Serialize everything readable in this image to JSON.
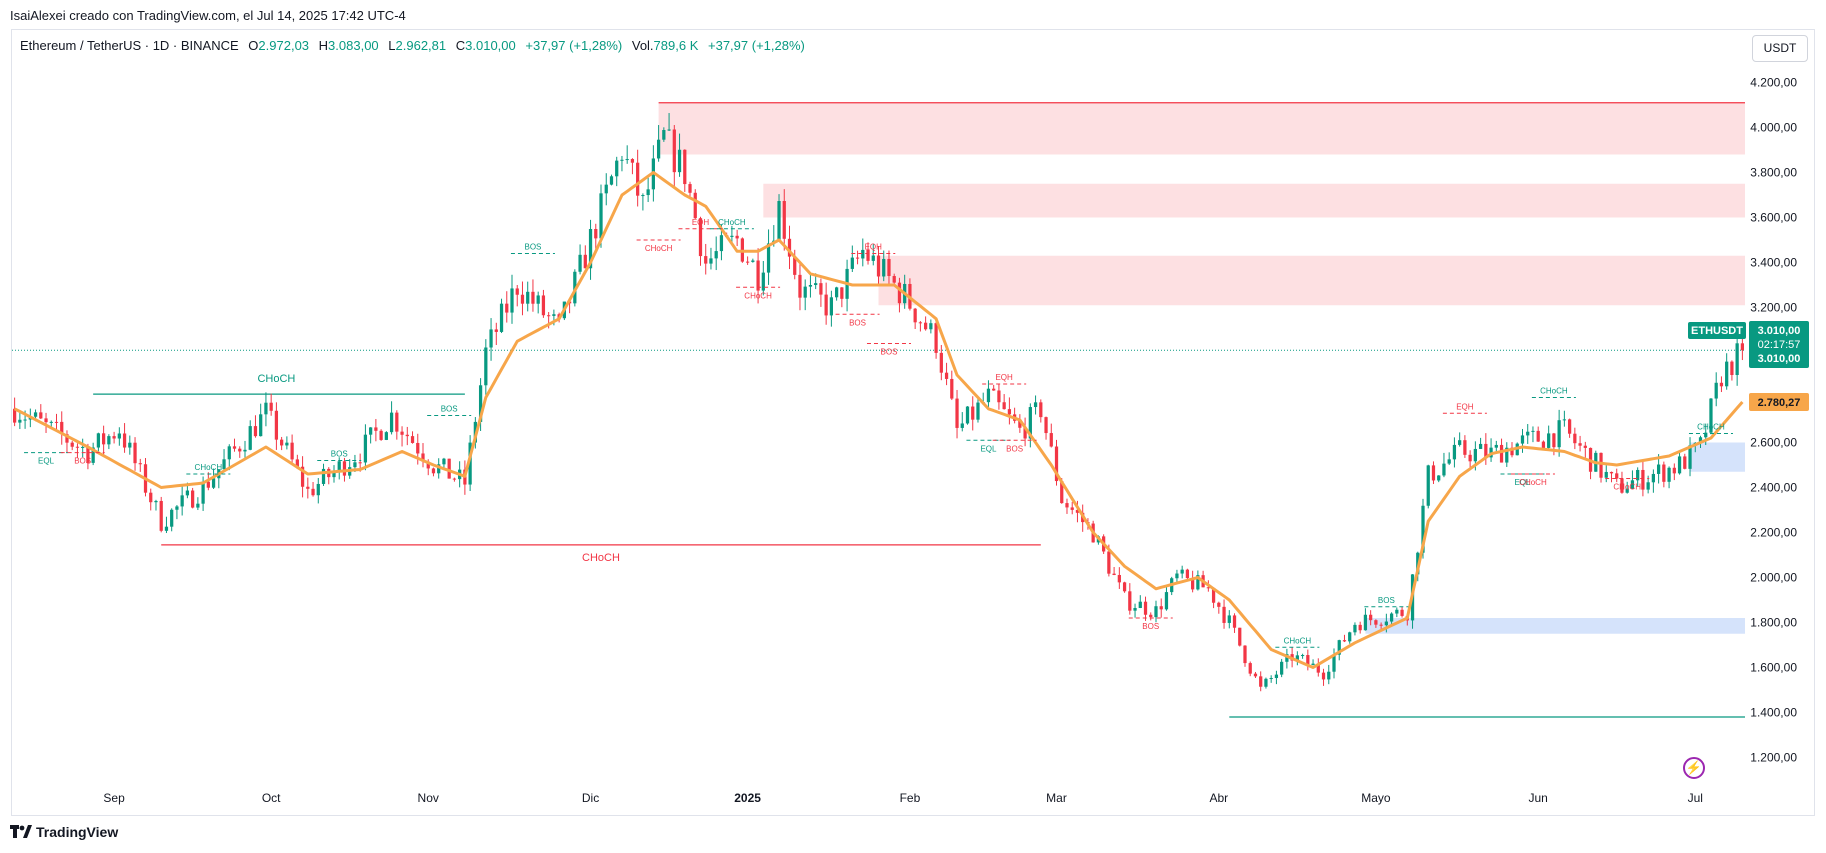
{
  "credit": "IsaiAlexei creado con TradingView.com, el Jul 14, 2025 17:42 UTC-4",
  "legend": {
    "symbol": "Ethereum / TetherUS · 1D · BINANCE",
    "o_label": "O",
    "o": "2.972,03",
    "h_label": "H",
    "h": "3.083,00",
    "l_label": "L",
    "l": "2.962,81",
    "c_label": "C",
    "c": "3.010,00",
    "change": "+37,97 (+1,28%)",
    "vol_label": "Vol.",
    "vol": "789,6 K",
    "vol_change": "+37,97 (+1,28%)"
  },
  "currency_button": "USDT",
  "brand": "TradingView",
  "colors": {
    "up": "#089981",
    "down": "#f23645",
    "ema": "#f7a64a",
    "supply": "#fde0e2",
    "demand": "#d5e3fb"
  },
  "chart_data": {
    "type": "candlestick",
    "symbol": "ETHUSDT",
    "ylim": [
      1100,
      4300
    ],
    "yticks": [
      "4.200,00",
      "4.000,00",
      "3.800,00",
      "3.600,00",
      "3.400,00",
      "3.200,00",
      "2.800,00",
      "2.600,00",
      "2.400,00",
      "2.200,00",
      "2.000,00",
      "1.800,00",
      "1.600,00",
      "1.400,00",
      "1.200,00"
    ],
    "ytick_values": [
      4200,
      4000,
      3800,
      3600,
      3400,
      3200,
      2800,
      2600,
      2400,
      2200,
      2000,
      1800,
      1600,
      1400,
      1200
    ],
    "xticks": [
      "Sep",
      "Oct",
      "Nov",
      "Dic",
      "2025",
      "Feb",
      "Mar",
      "Abr",
      "Mayo",
      "Jun",
      "Jul"
    ],
    "xtick_index": [
      19,
      49,
      79,
      110,
      140,
      171,
      199,
      230,
      260,
      291,
      321
    ],
    "price_labels": [
      {
        "text": "ETHUSDT",
        "value": 3100,
        "style": "up"
      },
      {
        "text": "3.010,00",
        "value": 3100,
        "style": "up"
      },
      {
        "text": "02:17:57",
        "value": 3040,
        "style": "up"
      },
      {
        "text": "3.010,00",
        "value": 2990,
        "style": "up"
      },
      {
        "text": "2.780,27",
        "value": 2780,
        "style": "ema"
      }
    ],
    "last_price": 3010,
    "anchors": [
      [
        0,
        2750
      ],
      [
        14,
        2560
      ],
      [
        20,
        2660
      ],
      [
        28,
        2250
      ],
      [
        36,
        2400
      ],
      [
        48,
        2730
      ],
      [
        56,
        2380
      ],
      [
        66,
        2560
      ],
      [
        72,
        2720
      ],
      [
        80,
        2500
      ],
      [
        86,
        2420
      ],
      [
        90,
        3000
      ],
      [
        96,
        3300
      ],
      [
        104,
        3100
      ],
      [
        110,
        3500
      ],
      [
        116,
        3900
      ],
      [
        120,
        3650
      ],
      [
        124,
        3950
      ],
      [
        128,
        3800
      ],
      [
        132,
        3400
      ],
      [
        138,
        3500
      ],
      [
        142,
        3350
      ],
      [
        146,
        3650
      ],
      [
        150,
        3280
      ],
      [
        156,
        3200
      ],
      [
        162,
        3450
      ],
      [
        170,
        3250
      ],
      [
        176,
        3050
      ],
      [
        180,
        2650
      ],
      [
        186,
        2800
      ],
      [
        192,
        2650
      ],
      [
        196,
        2750
      ],
      [
        200,
        2350
      ],
      [
        206,
        2200
      ],
      [
        212,
        1900
      ],
      [
        218,
        1850
      ],
      [
        222,
        2000
      ],
      [
        228,
        1950
      ],
      [
        232,
        1800
      ],
      [
        238,
        1500
      ],
      [
        244,
        1650
      ],
      [
        250,
        1580
      ],
      [
        256,
        1800
      ],
      [
        266,
        1850
      ],
      [
        270,
        2450
      ],
      [
        276,
        2560
      ],
      [
        282,
        2550
      ],
      [
        288,
        2600
      ],
      [
        296,
        2650
      ],
      [
        302,
        2500
      ],
      [
        306,
        2400
      ],
      [
        312,
        2450
      ],
      [
        318,
        2500
      ],
      [
        322,
        2580
      ],
      [
        326,
        2900
      ],
      [
        330,
        3010
      ]
    ],
    "ema_anchors": [
      [
        0,
        2750
      ],
      [
        14,
        2580
      ],
      [
        28,
        2400
      ],
      [
        36,
        2420
      ],
      [
        48,
        2580
      ],
      [
        56,
        2460
      ],
      [
        66,
        2480
      ],
      [
        74,
        2560
      ],
      [
        80,
        2500
      ],
      [
        86,
        2450
      ],
      [
        90,
        2800
      ],
      [
        96,
        3050
      ],
      [
        104,
        3150
      ],
      [
        110,
        3400
      ],
      [
        116,
        3700
      ],
      [
        122,
        3800
      ],
      [
        128,
        3700
      ],
      [
        132,
        3650
      ],
      [
        138,
        3450
      ],
      [
        142,
        3450
      ],
      [
        146,
        3500
      ],
      [
        152,
        3350
      ],
      [
        160,
        3300
      ],
      [
        168,
        3300
      ],
      [
        176,
        3150
      ],
      [
        180,
        2900
      ],
      [
        186,
        2750
      ],
      [
        192,
        2700
      ],
      [
        198,
        2500
      ],
      [
        206,
        2200
      ],
      [
        212,
        2050
      ],
      [
        218,
        1950
      ],
      [
        226,
        2000
      ],
      [
        232,
        1900
      ],
      [
        240,
        1680
      ],
      [
        248,
        1600
      ],
      [
        256,
        1710
      ],
      [
        266,
        1820
      ],
      [
        270,
        2250
      ],
      [
        276,
        2450
      ],
      [
        282,
        2550
      ],
      [
        288,
        2580
      ],
      [
        296,
        2560
      ],
      [
        302,
        2510
      ],
      [
        306,
        2500
      ],
      [
        316,
        2540
      ],
      [
        324,
        2620
      ],
      [
        330,
        2780
      ]
    ],
    "zones": [
      {
        "kind": "supply",
        "from": 123,
        "to": 332,
        "low": 3880,
        "high": 4110
      },
      {
        "kind": "supply",
        "from": 143,
        "to": 332,
        "low": 3600,
        "high": 3750
      },
      {
        "kind": "supply",
        "from": 165,
        "to": 332,
        "low": 3210,
        "high": 3430
      },
      {
        "kind": "demand",
        "from": 320,
        "to": 332,
        "low": 2470,
        "high": 2600
      },
      {
        "kind": "demand",
        "from": 258,
        "to": 332,
        "low": 1750,
        "high": 1820
      }
    ],
    "lines": [
      {
        "from": 15,
        "to": 86,
        "value": 2815,
        "color": "#089981",
        "label": "CHoCH",
        "label_at": 50,
        "label_above": true
      },
      {
        "from": 28,
        "to": 196,
        "value": 2145,
        "color": "#f23645",
        "label": "CHoCH",
        "label_at": 112,
        "label_above": false
      },
      {
        "from": 232,
        "to": 332,
        "value": 1380,
        "color": "#089981",
        "label": "",
        "label_at": 0,
        "label_above": true
      },
      {
        "from": 123,
        "to": 332,
        "value": 4110,
        "color": "#f23645",
        "label": "",
        "label_at": 0,
        "label_above": true
      }
    ],
    "marks": [
      {
        "text": "EQL",
        "i": 6,
        "value": 2555,
        "color": "#089981",
        "below": true
      },
      {
        "text": "BOS",
        "i": 13,
        "value": 2555,
        "color": "#f23645",
        "below": true
      },
      {
        "text": "CHoCH",
        "i": 37,
        "value": 2460,
        "color": "#089981",
        "below": false
      },
      {
        "text": "BOS",
        "i": 62,
        "value": 2520,
        "color": "#089981",
        "below": false
      },
      {
        "text": "BOS",
        "i": 83,
        "value": 2720,
        "color": "#089981",
        "below": false
      },
      {
        "text": "BOS",
        "i": 99,
        "value": 3440,
        "color": "#089981",
        "below": false
      },
      {
        "text": "EQH",
        "i": 131,
        "value": 3550,
        "color": "#f23645",
        "below": false
      },
      {
        "text": "CHoCH",
        "i": 123,
        "value": 3500,
        "color": "#f23645",
        "below": true
      },
      {
        "text": "CHoCH",
        "i": 137,
        "value": 3550,
        "color": "#089981",
        "below": false
      },
      {
        "text": "CHoCH",
        "i": 142,
        "value": 3290,
        "color": "#f23645",
        "below": true
      },
      {
        "text": "EQH",
        "i": 164,
        "value": 3440,
        "color": "#f23645",
        "below": false
      },
      {
        "text": "BOS",
        "i": 161,
        "value": 3170,
        "color": "#f23645",
        "below": true
      },
      {
        "text": "BOS",
        "i": 167,
        "value": 3040,
        "color": "#f23645",
        "below": true
      },
      {
        "text": "EQH",
        "i": 189,
        "value": 2860,
        "color": "#f23645",
        "below": false
      },
      {
        "text": "EQL",
        "i": 186,
        "value": 2610,
        "color": "#089981",
        "below": true
      },
      {
        "text": "BOS",
        "i": 191,
        "value": 2610,
        "color": "#f23645",
        "below": true
      },
      {
        "text": "BOS",
        "i": 217,
        "value": 1820,
        "color": "#f23645",
        "below": true
      },
      {
        "text": "CHoCH",
        "i": 245,
        "value": 1690,
        "color": "#089981",
        "below": false
      },
      {
        "text": "BOS",
        "i": 262,
        "value": 1870,
        "color": "#089981",
        "below": false
      },
      {
        "text": "EQH",
        "i": 277,
        "value": 2730,
        "color": "#f23645",
        "below": false
      },
      {
        "text": "CHoCH",
        "i": 294,
        "value": 2800,
        "color": "#089981",
        "below": false
      },
      {
        "text": "EQL",
        "i": 288,
        "value": 2460,
        "color": "#089981",
        "below": true
      },
      {
        "text": "CHoCH",
        "i": 290,
        "value": 2460,
        "color": "#f23645",
        "below": true
      },
      {
        "text": "CHoCH",
        "i": 308,
        "value": 2440,
        "color": "#f23645",
        "below": true
      },
      {
        "text": "CHoCH",
        "i": 324,
        "value": 2640,
        "color": "#089981",
        "below": false
      }
    ]
  }
}
